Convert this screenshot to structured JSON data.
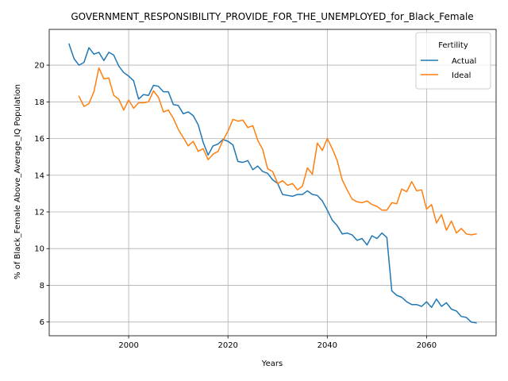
{
  "chart_data": {
    "type": "line",
    "title": "GOVERNMENT_RESPONSIBILITY_PROVIDE_FOR_THE_UNEMPLOYED_for_Black_Female",
    "xlabel": "Years",
    "ylabel": "% of Black_Female Above_Average_IQ Population",
    "xlim": [
      1984,
      2074
    ],
    "ylim": [
      5.25,
      21.95
    ],
    "xticks": [
      2000,
      2020,
      2040,
      2060
    ],
    "yticks": [
      6,
      8,
      10,
      12,
      14,
      16,
      18,
      20
    ],
    "grid": true,
    "legend": {
      "title": "Fertility",
      "placement": "top-right"
    },
    "series": [
      {
        "name": "Actual",
        "color": "#1f77b4",
        "x": [
          1988,
          1989,
          1990,
          1991,
          1992,
          1993,
          1994,
          1995,
          1996,
          1997,
          1998,
          1999,
          2000,
          2001,
          2002,
          2003,
          2004,
          2005,
          2006,
          2007,
          2008,
          2009,
          2010,
          2011,
          2012,
          2013,
          2014,
          2015,
          2016,
          2017,
          2018,
          2019,
          2020,
          2021,
          2022,
          2023,
          2024,
          2025,
          2026,
          2027,
          2028,
          2029,
          2030,
          2031,
          2032,
          2033,
          2034,
          2035,
          2036,
          2037,
          2038,
          2039,
          2040,
          2041,
          2042,
          2043,
          2044,
          2045,
          2046,
          2047,
          2048,
          2049,
          2050,
          2051,
          2052,
          2053,
          2054,
          2055,
          2056,
          2057,
          2058,
          2059,
          2060,
          2061,
          2062,
          2063,
          2064,
          2065,
          2066,
          2067,
          2068,
          2069,
          2070
        ],
        "values": [
          21.15,
          20.35,
          20.0,
          20.15,
          20.95,
          20.6,
          20.7,
          20.25,
          20.7,
          20.55,
          19.95,
          19.6,
          19.4,
          19.15,
          18.15,
          18.4,
          18.35,
          18.9,
          18.85,
          18.55,
          18.55,
          17.85,
          17.8,
          17.35,
          17.45,
          17.25,
          16.75,
          15.8,
          15.1,
          15.6,
          15.7,
          15.95,
          15.85,
          15.65,
          14.75,
          14.7,
          14.8,
          14.3,
          14.5,
          14.2,
          14.1,
          13.75,
          13.55,
          12.95,
          12.9,
          12.85,
          12.95,
          12.95,
          13.15,
          12.95,
          12.9,
          12.6,
          12.1,
          11.55,
          11.25,
          10.8,
          10.85,
          10.75,
          10.45,
          10.55,
          10.2,
          10.7,
          10.55,
          10.85,
          10.6,
          7.7,
          7.45,
          7.35,
          7.1,
          6.95,
          6.95,
          6.85,
          7.1,
          6.8,
          7.25,
          6.85,
          7.05,
          6.7,
          6.6,
          6.3,
          6.25,
          6.0,
          5.95
        ]
      },
      {
        "name": "Ideal",
        "color": "#ff7f0e",
        "x": [
          1990,
          1991,
          1992,
          1993,
          1994,
          1995,
          1996,
          1997,
          1998,
          1999,
          2000,
          2001,
          2002,
          2003,
          2004,
          2005,
          2006,
          2007,
          2008,
          2009,
          2010,
          2011,
          2012,
          2013,
          2014,
          2015,
          2016,
          2017,
          2018,
          2019,
          2020,
          2021,
          2022,
          2023,
          2024,
          2025,
          2026,
          2027,
          2028,
          2029,
          2030,
          2031,
          2032,
          2033,
          2034,
          2035,
          2036,
          2037,
          2038,
          2039,
          2040,
          2041,
          2042,
          2043,
          2044,
          2045,
          2046,
          2047,
          2048,
          2049,
          2050,
          2051,
          2052,
          2053,
          2054,
          2055,
          2056,
          2057,
          2058,
          2059,
          2060,
          2061,
          2062,
          2063,
          2064,
          2065,
          2066,
          2067,
          2068,
          2069,
          2070
        ],
        "values": [
          18.3,
          17.75,
          17.9,
          18.55,
          19.85,
          19.25,
          19.3,
          18.35,
          18.15,
          17.55,
          18.1,
          17.65,
          17.95,
          17.95,
          18.0,
          18.6,
          18.25,
          17.45,
          17.55,
          17.1,
          16.5,
          16.05,
          15.6,
          15.85,
          15.3,
          15.45,
          14.85,
          15.15,
          15.3,
          15.9,
          16.4,
          17.05,
          16.95,
          17.0,
          16.6,
          16.7,
          15.9,
          15.4,
          14.35,
          14.2,
          13.55,
          13.7,
          13.45,
          13.55,
          13.2,
          13.4,
          14.4,
          14.05,
          15.75,
          15.35,
          16.0,
          15.45,
          14.8,
          13.75,
          13.2,
          12.7,
          12.55,
          12.5,
          12.6,
          12.4,
          12.3,
          12.1,
          12.1,
          12.5,
          12.45,
          13.25,
          13.1,
          13.65,
          13.15,
          13.2,
          12.15,
          12.4,
          11.4,
          11.85,
          11.0,
          11.5,
          10.85,
          11.1,
          10.8,
          10.75,
          10.8
        ]
      }
    ]
  }
}
